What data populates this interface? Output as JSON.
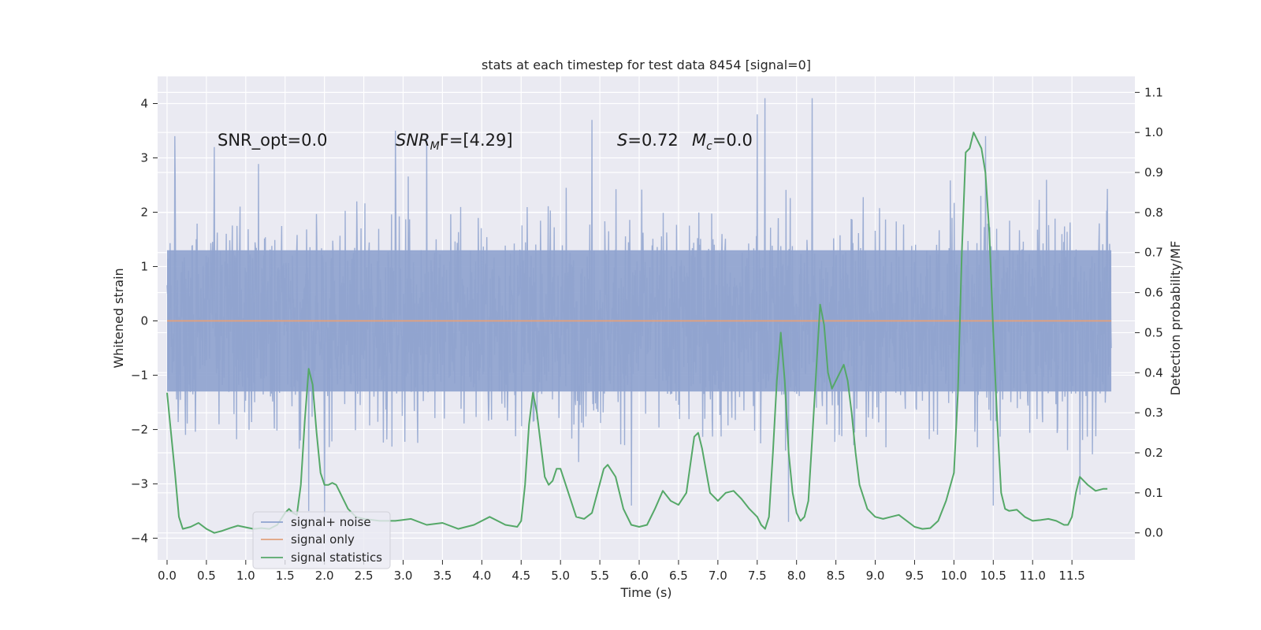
{
  "chart_data": {
    "type": "line",
    "title": "stats at each timestep for test data 8454 [signal=0]",
    "xlabel": "Time (s)",
    "ylabel": "Whitened strain",
    "y2label": "Detection probability/MF",
    "xlim": [
      -0.12,
      12.3
    ],
    "ylim": [
      -4.4,
      4.5
    ],
    "y2lim": [
      -0.0675,
      1.14
    ],
    "xticks": [
      0.0,
      0.5,
      1.0,
      1.5,
      2.0,
      2.5,
      3.0,
      3.5,
      4.0,
      4.5,
      5.0,
      5.5,
      6.0,
      6.5,
      7.0,
      7.5,
      8.0,
      8.5,
      9.0,
      9.5,
      10.0,
      10.5,
      11.0,
      11.5
    ],
    "xtick_labels": [
      "0.0",
      "0.5",
      "1.0",
      "1.5",
      "2.0",
      "2.5",
      "3.0",
      "3.5",
      "4.0",
      "4.5",
      "5.0",
      "5.5",
      "6.0",
      "6.5",
      "7.0",
      "7.5",
      "8.0",
      "8.5",
      "9.0",
      "9.5",
      "10.0",
      "10.5",
      "11.0",
      "11.5"
    ],
    "yticks": [
      -4,
      -3,
      -2,
      -1,
      0,
      1,
      2,
      3,
      4
    ],
    "ytick_labels": [
      "−4",
      "−3",
      "−2",
      "−1",
      "0",
      "1",
      "2",
      "3",
      "4"
    ],
    "y2ticks": [
      0.0,
      0.1,
      0.2,
      0.3,
      0.4,
      0.5,
      0.6,
      0.7,
      0.8,
      0.9,
      1.0,
      1.1
    ],
    "y2tick_labels": [
      "0.0",
      "0.1",
      "0.2",
      "0.3",
      "0.4",
      "0.5",
      "0.6",
      "0.7",
      "0.8",
      "0.9",
      "1.0",
      "1.1"
    ],
    "grid": true,
    "legend_position": "lower-left",
    "annotations": {
      "snr_opt": "SNR_opt=0.0",
      "snr_mf_var": "SNR",
      "snr_mf_sub": "M",
      "snr_mf_rest": "F=[4.29]",
      "s_var": "S",
      "s_rest": "=0.72",
      "mc_var": "M",
      "mc_sub": "c",
      "mc_rest": "=0.0"
    },
    "series": [
      {
        "name": "signal+ noise",
        "color": "#8fa3cf",
        "axis": "left",
        "kind": "noise",
        "x_range": [
          0.0,
          12.0
        ],
        "envelope": [
          1.3,
          -1.3
        ],
        "peaks": [
          {
            "x": 0.1,
            "y": 3.4
          },
          {
            "x": 0.6,
            "y": 3.2
          },
          {
            "x": 1.8,
            "y": 3.3
          },
          {
            "x": 2.9,
            "y": 3.5
          },
          {
            "x": 3.3,
            "y": 3.4
          },
          {
            "x": 5.4,
            "y": 3.7
          },
          {
            "x": 7.5,
            "y": 3.8
          },
          {
            "x": 7.6,
            "y": 4.1
          },
          {
            "x": 8.2,
            "y": 4.1
          },
          {
            "x": 10.4,
            "y": 3.4
          },
          {
            "x": 11.6,
            "y": 3.3
          },
          {
            "x": 1.8,
            "y": -3.5
          },
          {
            "x": 2.0,
            "y": -3.6
          },
          {
            "x": 5.9,
            "y": -3.4
          },
          {
            "x": 7.9,
            "y": -3.7
          },
          {
            "x": 10.5,
            "y": -3.4
          },
          {
            "x": 11.6,
            "y": -3.2
          }
        ]
      },
      {
        "name": "signal only",
        "color": "#e1a07e",
        "axis": "left",
        "x": [
          0.0,
          12.0
        ],
        "y": [
          0.0,
          0.0
        ]
      },
      {
        "name": "signal statistics",
        "color": "#55a868",
        "axis": "right",
        "x": [
          0.0,
          0.05,
          0.1,
          0.15,
          0.2,
          0.3,
          0.4,
          0.5,
          0.6,
          0.7,
          0.8,
          0.9,
          1.0,
          1.1,
          1.2,
          1.3,
          1.4,
          1.5,
          1.55,
          1.6,
          1.65,
          1.7,
          1.75,
          1.8,
          1.85,
          1.9,
          1.95,
          2.0,
          2.05,
          2.1,
          2.15,
          2.2,
          2.3,
          2.4,
          2.5,
          2.7,
          2.9,
          3.1,
          3.3,
          3.5,
          3.7,
          3.9,
          4.1,
          4.3,
          4.45,
          4.5,
          4.55,
          4.6,
          4.65,
          4.7,
          4.8,
          4.85,
          4.9,
          4.95,
          5.0,
          5.1,
          5.2,
          5.3,
          5.4,
          5.55,
          5.6,
          5.7,
          5.8,
          5.9,
          6.0,
          6.1,
          6.2,
          6.3,
          6.4,
          6.5,
          6.6,
          6.7,
          6.75,
          6.8,
          6.9,
          7.0,
          7.1,
          7.2,
          7.3,
          7.4,
          7.5,
          7.55,
          7.6,
          7.65,
          7.7,
          7.75,
          7.8,
          7.85,
          7.9,
          7.95,
          8.0,
          8.05,
          8.1,
          8.15,
          8.2,
          8.3,
          8.35,
          8.4,
          8.45,
          8.5,
          8.55,
          8.6,
          8.65,
          8.7,
          8.75,
          8.8,
          8.9,
          9.0,
          9.1,
          9.2,
          9.3,
          9.4,
          9.5,
          9.6,
          9.7,
          9.8,
          9.9,
          10.0,
          10.05,
          10.1,
          10.15,
          10.2,
          10.25,
          10.3,
          10.35,
          10.4,
          10.45,
          10.5,
          10.55,
          10.6,
          10.65,
          10.7,
          10.8,
          10.9,
          11.0,
          11.1,
          11.2,
          11.3,
          11.4,
          11.45,
          11.5,
          11.55,
          11.6,
          11.7,
          11.8,
          11.9,
          11.95
        ],
        "y": [
          0.35,
          0.25,
          0.15,
          0.04,
          0.01,
          0.015,
          0.025,
          0.01,
          0.0,
          0.005,
          0.012,
          0.018,
          0.014,
          0.01,
          0.012,
          0.01,
          0.02,
          0.05,
          0.06,
          0.05,
          0.045,
          0.12,
          0.28,
          0.41,
          0.37,
          0.25,
          0.15,
          0.12,
          0.12,
          0.125,
          0.12,
          0.1,
          0.06,
          0.04,
          0.035,
          0.03,
          0.03,
          0.035,
          0.02,
          0.025,
          0.01,
          0.02,
          0.04,
          0.02,
          0.015,
          0.03,
          0.12,
          0.27,
          0.35,
          0.3,
          0.14,
          0.12,
          0.13,
          0.16,
          0.16,
          0.1,
          0.04,
          0.035,
          0.05,
          0.16,
          0.17,
          0.14,
          0.06,
          0.02,
          0.015,
          0.02,
          0.06,
          0.105,
          0.08,
          0.07,
          0.1,
          0.24,
          0.25,
          0.21,
          0.1,
          0.08,
          0.1,
          0.105,
          0.085,
          0.06,
          0.04,
          0.02,
          0.01,
          0.04,
          0.2,
          0.38,
          0.5,
          0.38,
          0.2,
          0.1,
          0.05,
          0.03,
          0.04,
          0.08,
          0.24,
          0.57,
          0.52,
          0.4,
          0.36,
          0.38,
          0.4,
          0.42,
          0.38,
          0.3,
          0.2,
          0.12,
          0.06,
          0.04,
          0.035,
          0.04,
          0.045,
          0.03,
          0.015,
          0.01,
          0.012,
          0.03,
          0.08,
          0.15,
          0.35,
          0.7,
          0.95,
          0.96,
          1.0,
          0.98,
          0.96,
          0.9,
          0.75,
          0.5,
          0.28,
          0.1,
          0.06,
          0.055,
          0.058,
          0.04,
          0.03,
          0.032,
          0.035,
          0.03,
          0.02,
          0.02,
          0.04,
          0.1,
          0.14,
          0.12,
          0.105,
          0.11,
          0.11
        ]
      }
    ]
  }
}
